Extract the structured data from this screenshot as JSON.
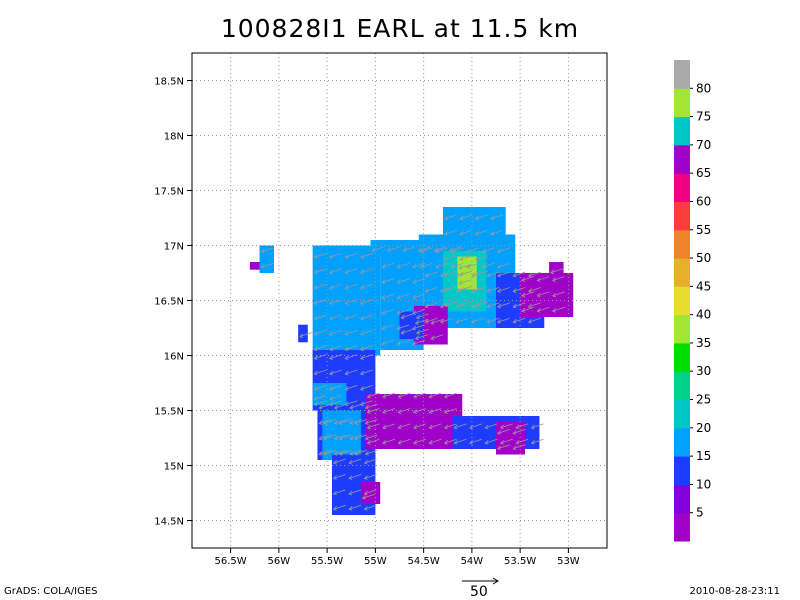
{
  "title": "100828I1 EARL at 11.5 km",
  "footer": {
    "left": "GrADS: COLA/IGES",
    "right": "2010-08-28-23:11",
    "reference_vector_label": "50"
  },
  "chart_data": {
    "type": "heatmap",
    "title": "100828I1 EARL at 11.5 km",
    "x_axis": {
      "unit": "degrees W",
      "range": [
        56.9,
        52.6
      ],
      "ticks": [
        56.5,
        56,
        55.5,
        55,
        54.5,
        54,
        53.5,
        53
      ],
      "tick_labels": [
        "56.5W",
        "56W",
        "55.5W",
        "55W",
        "54.5W",
        "54W",
        "53.5W",
        "53W"
      ]
    },
    "y_axis": {
      "unit": "degrees N",
      "range": [
        14.25,
        18.75
      ],
      "ticks": [
        14.5,
        15,
        15.5,
        16,
        16.5,
        17,
        17.5,
        18,
        18.5
      ],
      "tick_labels": [
        "14.5N",
        "15N",
        "15.5N",
        "16N",
        "16.5N",
        "17N",
        "17.5N",
        "18N",
        "18.5N"
      ]
    },
    "grid": true,
    "colorbar": {
      "placement": "right",
      "labels": [
        "5",
        "10",
        "15",
        "20",
        "25",
        "30",
        "35",
        "40",
        "45",
        "50",
        "55",
        "60",
        "65",
        "70",
        "75",
        "80"
      ],
      "bounds": [
        0,
        5,
        10,
        15,
        20,
        25,
        30,
        35,
        40,
        45,
        50,
        55,
        60,
        65,
        70,
        75,
        80,
        85
      ],
      "colors": [
        "#a000c8",
        "#8200dc",
        "#1e3cff",
        "#00a0ff",
        "#00c8c8",
        "#00d28c",
        "#00dc00",
        "#a0e632",
        "#e6dc32",
        "#e6af2d",
        "#f08228",
        "#fa3c3c",
        "#f00082",
        "#a000c8",
        "#00c8c8",
        "#a0e632",
        "#aaaaaa"
      ]
    },
    "wind_field": {
      "reference_vector": 50,
      "dominant_direction": "towards west-southwest"
    },
    "regions": [
      {
        "lon_range": [
          55.65,
          54.95
        ],
        "lat_range": [
          16.0,
          17.0
        ],
        "speed": 17
      },
      {
        "lon_range": [
          55.05,
          54.15
        ],
        "lat_range": [
          16.9,
          17.05
        ],
        "speed": 18
      },
      {
        "lon_range": [
          54.95,
          54.5
        ],
        "lat_range": [
          16.05,
          16.9
        ],
        "speed": 19
      },
      {
        "lon_range": [
          54.55,
          53.55
        ],
        "lat_range": [
          16.75,
          17.1
        ],
        "speed": 17
      },
      {
        "lon_range": [
          54.3,
          53.65
        ],
        "lat_range": [
          17.05,
          17.35
        ],
        "speed": 16
      },
      {
        "lon_range": [
          54.5,
          53.75
        ],
        "lat_range": [
          16.25,
          16.8
        ],
        "speed": 19
      },
      {
        "lon_range": [
          54.3,
          53.85
        ],
        "lat_range": [
          16.4,
          16.95
        ],
        "speed": 23
      },
      {
        "lon_range": [
          54.15,
          53.95
        ],
        "lat_range": [
          16.6,
          16.9
        ],
        "speed": 37
      },
      {
        "lon_range": [
          53.75,
          53.25
        ],
        "lat_range": [
          16.25,
          16.75
        ],
        "speed": 13
      },
      {
        "lon_range": [
          53.5,
          52.95
        ],
        "lat_range": [
          16.35,
          16.75
        ],
        "speed": 4
      },
      {
        "lon_range": [
          53.2,
          53.05
        ],
        "lat_range": [
          16.7,
          16.85
        ],
        "speed": 4
      },
      {
        "lon_range": [
          54.6,
          54.25
        ],
        "lat_range": [
          16.1,
          16.45
        ],
        "speed": 4
      },
      {
        "lon_range": [
          54.75,
          54.5
        ],
        "lat_range": [
          16.15,
          16.4
        ],
        "speed": 12
      },
      {
        "lon_range": [
          55.65,
          55.0
        ],
        "lat_range": [
          15.5,
          16.05
        ],
        "speed": 14
      },
      {
        "lon_range": [
          55.65,
          55.3
        ],
        "lat_range": [
          15.55,
          15.75
        ],
        "speed": 17
      },
      {
        "lon_range": [
          55.6,
          55.0
        ],
        "lat_range": [
          15.05,
          15.55
        ],
        "speed": 14
      },
      {
        "lon_range": [
          55.55,
          55.15
        ],
        "lat_range": [
          15.05,
          15.5
        ],
        "speed": 19
      },
      {
        "lon_range": [
          55.1,
          54.1
        ],
        "lat_range": [
          15.15,
          15.65
        ],
        "speed": 4
      },
      {
        "lon_range": [
          54.2,
          53.3
        ],
        "lat_range": [
          15.15,
          15.45
        ],
        "speed": 11
      },
      {
        "lon_range": [
          53.75,
          53.45
        ],
        "lat_range": [
          15.1,
          15.4
        ],
        "speed": 4
      },
      {
        "lon_range": [
          55.45,
          55.0
        ],
        "lat_range": [
          14.55,
          15.1
        ],
        "speed": 12
      },
      {
        "lon_range": [
          55.15,
          54.95
        ],
        "lat_range": [
          14.65,
          14.85
        ],
        "speed": 4
      },
      {
        "lon_range": [
          56.2,
          56.05
        ],
        "lat_range": [
          16.75,
          17.0
        ],
        "speed": 18
      },
      {
        "lon_range": [
          56.3,
          56.2
        ],
        "lat_range": [
          16.78,
          16.85
        ],
        "speed": 4
      },
      {
        "lon_range": [
          55.8,
          55.7
        ],
        "lat_range": [
          16.12,
          16.28
        ],
        "speed": 12
      }
    ]
  }
}
